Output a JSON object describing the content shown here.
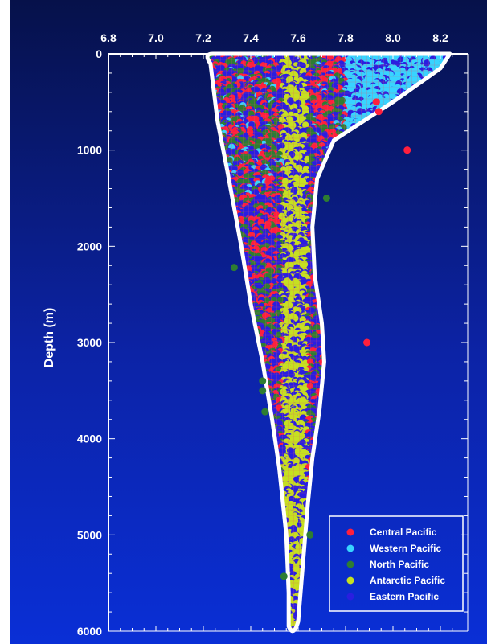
{
  "chart_data": {
    "type": "scatter",
    "title": "",
    "xlabel": "",
    "ylabel": "Depth (m)",
    "xlim": [
      6.8,
      8.3
    ],
    "ylim": [
      0,
      6000
    ],
    "x_ticks": [
      "6.8",
      "7.0",
      "7.2",
      "7.4",
      "7.6",
      "7.8",
      "8.0",
      "8.2"
    ],
    "y_ticks": [
      "0",
      "1000",
      "2000",
      "3000",
      "4000",
      "5000",
      "6000"
    ],
    "x_axis_position": "top",
    "y_axis_inverted": true,
    "grid": false,
    "background": "#0b1a7a",
    "legend_position": "bottom-right",
    "series": [
      {
        "name": "Central Pacific",
        "color": "#ff1f3d"
      },
      {
        "name": "Western Pacific",
        "color": "#38d4ff"
      },
      {
        "name": "North Pacific",
        "color": "#2e7d32"
      },
      {
        "name": "Antarctic Pacific",
        "color": "#c6e021"
      },
      {
        "name": "Eastern Pacific",
        "color": "#2a1ee0"
      }
    ],
    "envelope": {
      "color": "#ffffff",
      "left_boundary": [
        [
          7.23,
          100
        ],
        [
          7.24,
          300
        ],
        [
          7.26,
          700
        ],
        [
          7.3,
          1200
        ],
        [
          7.33,
          1600
        ],
        [
          7.36,
          2000
        ],
        [
          7.4,
          2600
        ],
        [
          7.45,
          3200
        ],
        [
          7.49,
          3800
        ],
        [
          7.52,
          4300
        ],
        [
          7.55,
          5000
        ],
        [
          7.56,
          5600
        ],
        [
          7.56,
          5950
        ]
      ],
      "right_boundary": [
        [
          8.24,
          0
        ],
        [
          8.2,
          150
        ],
        [
          8.0,
          500
        ],
        [
          7.75,
          900
        ],
        [
          7.68,
          1300
        ],
        [
          7.66,
          1800
        ],
        [
          7.67,
          2300
        ],
        [
          7.7,
          2800
        ],
        [
          7.71,
          3200
        ],
        [
          7.69,
          3700
        ],
        [
          7.66,
          4200
        ],
        [
          7.64,
          4700
        ],
        [
          7.62,
          5300
        ],
        [
          7.6,
          5900
        ]
      ]
    },
    "outliers": [
      {
        "series": "Central Pacific",
        "x": 8.06,
        "y": 1000
      },
      {
        "series": "Central Pacific",
        "x": 7.89,
        "y": 3000
      },
      {
        "series": "Central Pacific",
        "x": 7.93,
        "y": 500
      },
      {
        "series": "Central Pacific",
        "x": 7.94,
        "y": 600
      },
      {
        "series": "North Pacific",
        "x": 7.72,
        "y": 1500
      },
      {
        "series": "North Pacific",
        "x": 7.33,
        "y": 2220
      },
      {
        "series": "North Pacific",
        "x": 7.45,
        "y": 3400
      },
      {
        "series": "North Pacific",
        "x": 7.45,
        "y": 3500
      },
      {
        "series": "North Pacific",
        "x": 7.46,
        "y": 3720
      },
      {
        "series": "North Pacific",
        "x": 7.54,
        "y": 5430
      },
      {
        "series": "North Pacific",
        "x": 7.65,
        "y": 5000
      }
    ]
  }
}
